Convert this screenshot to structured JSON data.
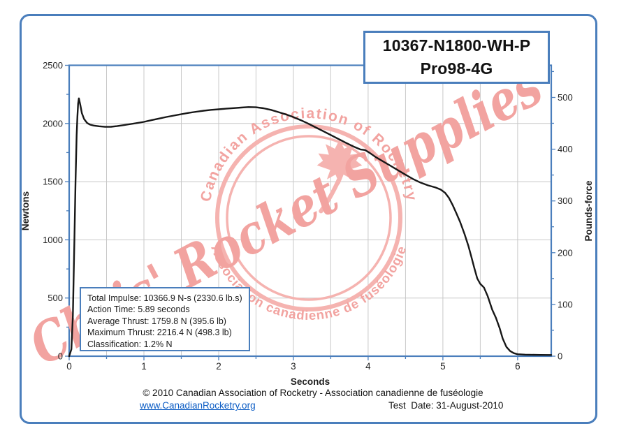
{
  "title_box": {
    "line1": "10367-N1800-WH-P",
    "line2": "Pro98-4G"
  },
  "info_box": {
    "lines": [
      "Total Impulse: 10366.9 N-s (2330.6 lb.s)",
      "Action Time: 5.89 seconds",
      "Average Thrust: 1759.8 N (395.6 lb)",
      "Maximum Thrust: 2216.4 N (498.3 lb)",
      "Classification: 1.2% N"
    ]
  },
  "footer": {
    "copyright": "© 2010 Canadian Association of Rocketry - Association canadienne de fuséologie",
    "link": "www.CanadianRocketry.org",
    "test_date": "Test  Date: 31-August-2010"
  },
  "watermark": {
    "script_text": "Chris' Rocket Supplies",
    "arc_top": "Canadian Association of Rocketry",
    "arc_bottom": "• Association canadienne de fuséologie •",
    "maple_leaf_icon": "maple-leaf",
    "color": "#f2a3a0",
    "color_light": "#f5b3b0"
  },
  "colors": {
    "accent_blue": "#4a7ebc",
    "grid": "#c8c8c8",
    "curve": "#171717",
    "link_blue": "#0b5cc4",
    "text": "#262626"
  },
  "chart_data": {
    "type": "line",
    "title": "10367-N1800-WH-P Pro98-4G thrust curve",
    "xlabel": "Seconds",
    "ylabel_left": "Newtons",
    "ylabel_right": "Pounds-force",
    "xlim": [
      0,
      6.45
    ],
    "ylim_newtons": [
      0,
      2500
    ],
    "x_ticks": [
      0,
      1,
      2,
      3,
      4,
      5,
      6
    ],
    "x_minor_step": 0.5,
    "y_left_ticks": [
      0,
      500,
      1000,
      1500,
      2000,
      2500
    ],
    "y_left_minor_step": 250,
    "y_right_ticks": [
      0,
      100,
      200,
      300,
      400,
      500
    ],
    "y_right_minor_step": 50,
    "grid": true,
    "legend": false,
    "series": [
      {
        "name": "thrust",
        "units": [
          "seconds",
          "newtons"
        ],
        "points": [
          [
            0,
            0
          ],
          [
            0.03,
            60
          ],
          [
            0.05,
            350
          ],
          [
            0.07,
            1000
          ],
          [
            0.085,
            1500
          ],
          [
            0.1,
            1900
          ],
          [
            0.11,
            2060
          ],
          [
            0.12,
            2170
          ],
          [
            0.13,
            2216
          ],
          [
            0.15,
            2158
          ],
          [
            0.17,
            2088
          ],
          [
            0.2,
            2038
          ],
          [
            0.24,
            2004
          ],
          [
            0.28,
            1990
          ],
          [
            0.33,
            1982
          ],
          [
            0.4,
            1976
          ],
          [
            0.48,
            1971
          ],
          [
            0.56,
            1972
          ],
          [
            0.64,
            1977
          ],
          [
            0.72,
            1985
          ],
          [
            0.8,
            1993
          ],
          [
            0.9,
            2003
          ],
          [
            1,
            2014
          ],
          [
            1.1,
            2028
          ],
          [
            1.2,
            2042
          ],
          [
            1.3,
            2056
          ],
          [
            1.4,
            2068
          ],
          [
            1.5,
            2080
          ],
          [
            1.6,
            2091
          ],
          [
            1.7,
            2101
          ],
          [
            1.8,
            2110
          ],
          [
            1.9,
            2117
          ],
          [
            2,
            2122
          ],
          [
            2.1,
            2127
          ],
          [
            2.2,
            2132
          ],
          [
            2.3,
            2137
          ],
          [
            2.4,
            2141
          ],
          [
            2.5,
            2139
          ],
          [
            2.6,
            2131
          ],
          [
            2.7,
            2117
          ],
          [
            2.8,
            2098
          ],
          [
            2.9,
            2078
          ],
          [
            3,
            2055
          ],
          [
            3.1,
            2028
          ],
          [
            3.2,
            1998
          ],
          [
            3.3,
            1966
          ],
          [
            3.4,
            1934
          ],
          [
            3.5,
            1901
          ],
          [
            3.6,
            1868
          ],
          [
            3.7,
            1835
          ],
          [
            3.8,
            1803
          ],
          [
            3.9,
            1776
          ],
          [
            3.96,
            1772
          ],
          [
            4.02,
            1748
          ],
          [
            4.1,
            1712
          ],
          [
            4.2,
            1674
          ],
          [
            4.3,
            1636
          ],
          [
            4.4,
            1598
          ],
          [
            4.5,
            1560
          ],
          [
            4.6,
            1523
          ],
          [
            4.7,
            1492
          ],
          [
            4.8,
            1468
          ],
          [
            4.9,
            1450
          ],
          [
            4.97,
            1432
          ],
          [
            5.03,
            1404
          ],
          [
            5.08,
            1362
          ],
          [
            5.13,
            1300
          ],
          [
            5.18,
            1230
          ],
          [
            5.23,
            1155
          ],
          [
            5.29,
            1050
          ],
          [
            5.34,
            950
          ],
          [
            5.38,
            858
          ],
          [
            5.42,
            760
          ],
          [
            5.46,
            668
          ],
          [
            5.5,
            622
          ],
          [
            5.55,
            590
          ],
          [
            5.6,
            515
          ],
          [
            5.66,
            400
          ],
          [
            5.71,
            330
          ],
          [
            5.76,
            240
          ],
          [
            5.8,
            152
          ],
          [
            5.85,
            80
          ],
          [
            5.9,
            44
          ],
          [
            5.95,
            26
          ],
          [
            6,
            17
          ],
          [
            6.1,
            13
          ],
          [
            6.3,
            11
          ],
          [
            6.45,
            10
          ]
        ]
      }
    ]
  }
}
